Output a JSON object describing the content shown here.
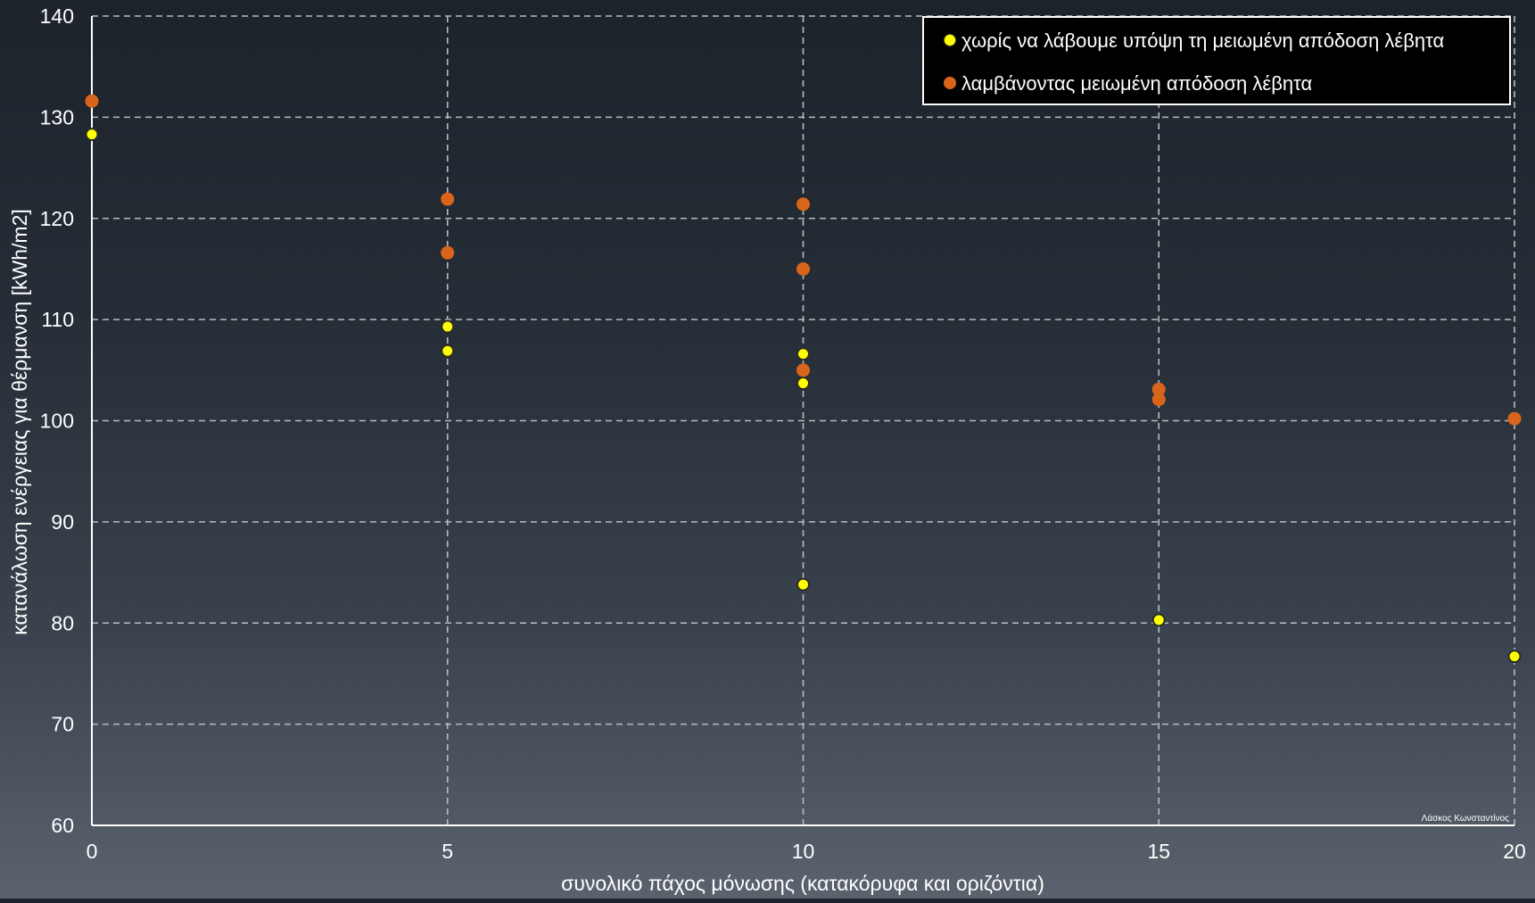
{
  "chart_data": {
    "type": "scatter",
    "xlabel": "συνολικό πάχος μόνωσης (κατακόρυφα και οριζόντια)",
    "ylabel": "κατανάλωση ενέργειας για θέρμανση [kWh/m2]",
    "xlim": [
      0,
      20
    ],
    "ylim": [
      60,
      140
    ],
    "x_ticks": [
      "0",
      "5",
      "10",
      "15",
      "20"
    ],
    "y_ticks": [
      "60",
      "70",
      "80",
      "90",
      "100",
      "110",
      "120",
      "130",
      "140"
    ],
    "grid": true,
    "legend_position": "top-right",
    "credit": "Λάσκος Κωνσταντίνος",
    "series": [
      {
        "name": "χωρίς να λάβουμε υπόψη τη μειωμένη απόδοση λέβητα",
        "color": "#ffff00",
        "points": [
          {
            "x": 0,
            "y": 128.3
          },
          {
            "x": 5,
            "y": 109.3
          },
          {
            "x": 5,
            "y": 106.9
          },
          {
            "x": 10,
            "y": 106.6
          },
          {
            "x": 10,
            "y": 103.7
          },
          {
            "x": 10,
            "y": 83.8
          },
          {
            "x": 15,
            "y": 80.3
          },
          {
            "x": 20,
            "y": 76.7
          }
        ]
      },
      {
        "name": "λαμβάνοντας μειωμένη απόδοση λέβητα",
        "color": "#d9651b",
        "points": [
          {
            "x": 0,
            "y": 131.6
          },
          {
            "x": 5,
            "y": 121.9
          },
          {
            "x": 5,
            "y": 116.6
          },
          {
            "x": 10,
            "y": 121.4
          },
          {
            "x": 10,
            "y": 115.0
          },
          {
            "x": 10,
            "y": 105.0
          },
          {
            "x": 15,
            "y": 103.1
          },
          {
            "x": 15,
            "y": 102.1
          },
          {
            "x": 20,
            "y": 100.2
          }
        ]
      }
    ]
  }
}
